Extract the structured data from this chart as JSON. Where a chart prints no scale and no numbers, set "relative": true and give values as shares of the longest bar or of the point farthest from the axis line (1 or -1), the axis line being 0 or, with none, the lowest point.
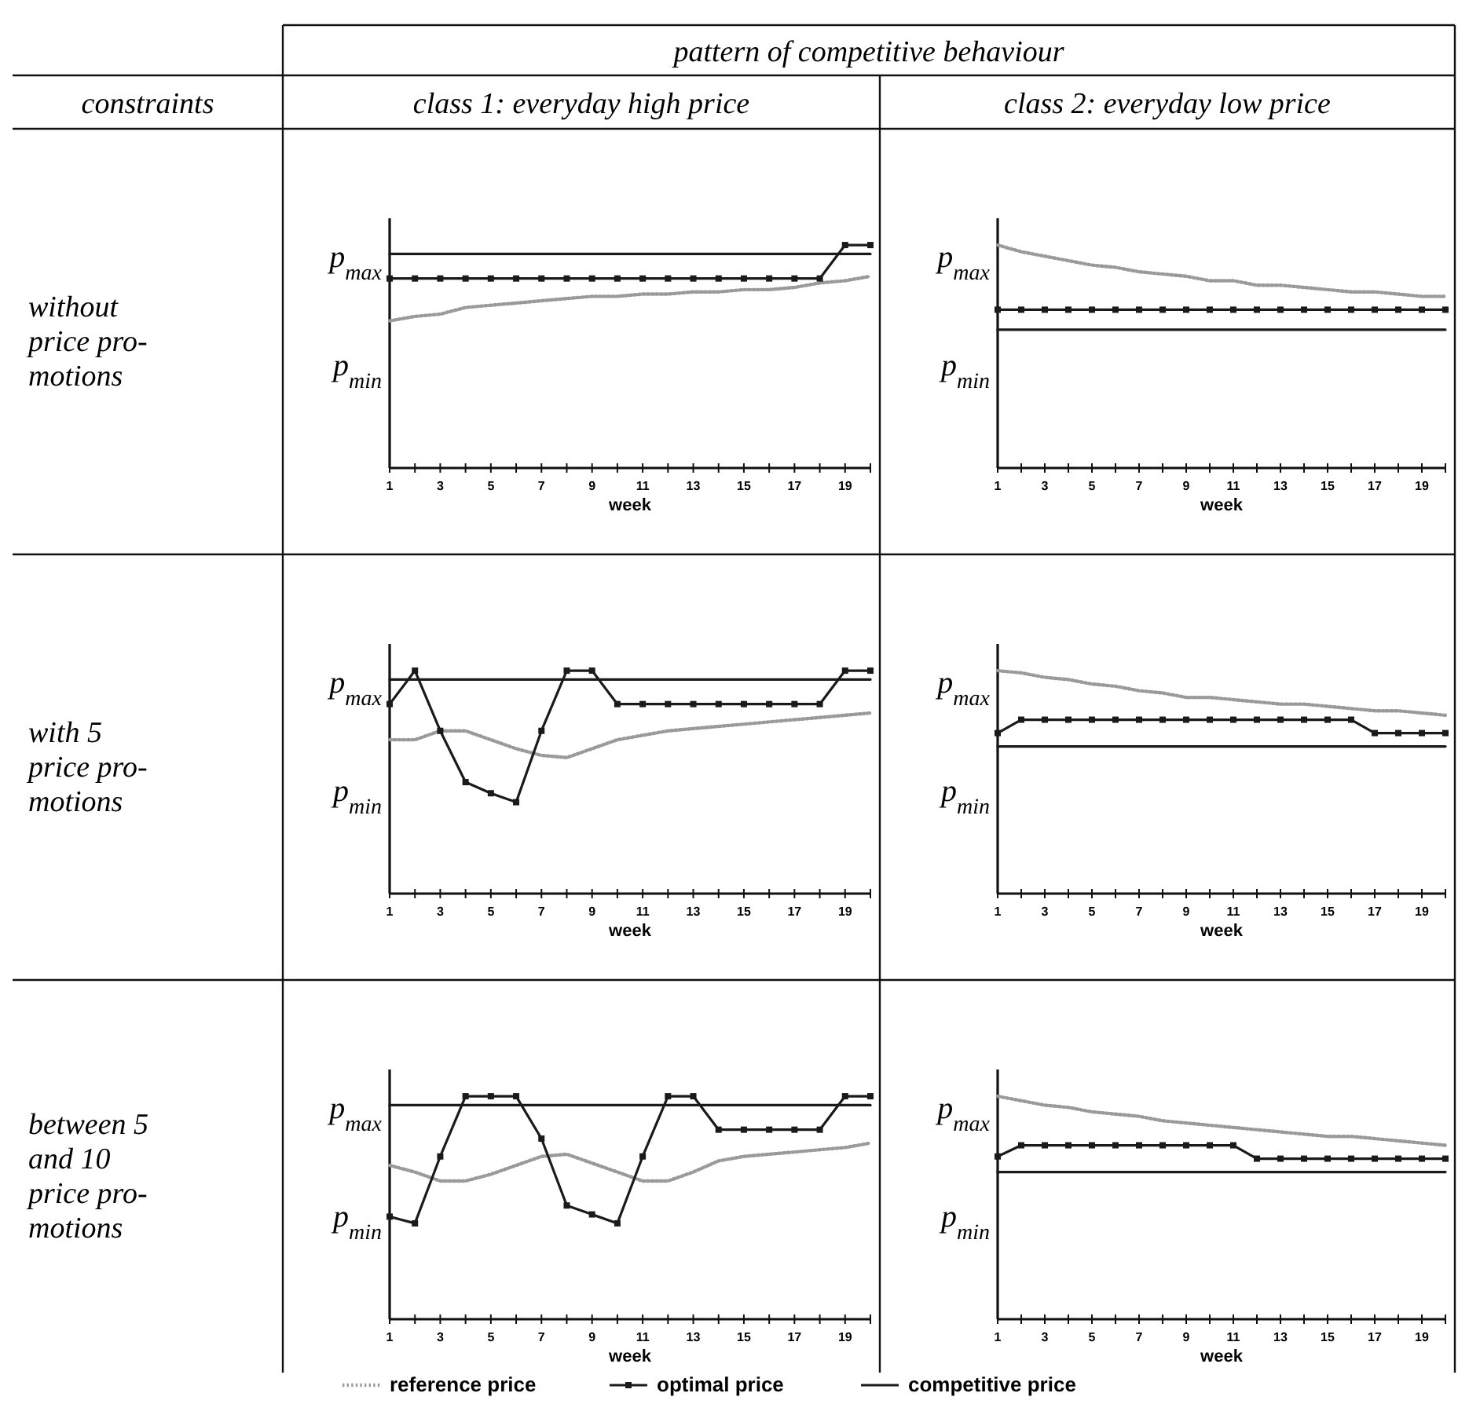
{
  "chart_data": [
    {
      "type": "other",
      "annotations": [
        "pattern of competitive behaviour",
        "constraints",
        "class 1: everyday high price",
        "class 2: everyday low price",
        "without\nprice pro-\nmotions",
        "with 5\nprice pro-\nmotions",
        "between 5\nand 10\nprice pro-\nmotions"
      ]
    },
    {
      "type": "line",
      "relative": true,
      "xlabel": "week",
      "xlim": [
        1,
        20
      ],
      "xticks": [
        1,
        {
          "value": 2,
          "label": null
        },
        3,
        {
          "value": 4,
          "label": null
        },
        5,
        {
          "value": 6,
          "label": null
        },
        7,
        {
          "value": 8,
          "label": null
        },
        9,
        {
          "value": 10,
          "label": null
        },
        11,
        {
          "value": 12,
          "label": null
        },
        13,
        {
          "value": 14,
          "label": null
        },
        15,
        {
          "value": 16,
          "label": null
        },
        17,
        {
          "value": 18,
          "label": null
        },
        19,
        {
          "value": 20,
          "label": null
        }
      ],
      "annotations": [
        "p$_{max}$",
        "p$_{min}$"
      ],
      "x": [
        1,
        2,
        3,
        4,
        5,
        6,
        7,
        8,
        9,
        10,
        11,
        12,
        13,
        14,
        15,
        16,
        17,
        18,
        19,
        20
      ],
      "series": [
        {
          "color": "#9a9a9a",
          "line_style": "dotted",
          "marker": "none",
          "values": [
            0.66,
            0.68,
            0.69,
            0.72,
            0.73,
            0.74,
            0.75,
            0.76,
            0.77,
            0.77,
            0.78,
            0.78,
            0.79,
            0.79,
            0.8,
            0.8,
            0.81,
            0.83,
            0.84,
            0.86
          ]
        },
        {
          "color": "#1a1a1a",
          "line_style": "solid",
          "marker": "square",
          "values": [
            0.85,
            0.85,
            0.85,
            0.85,
            0.85,
            0.85,
            0.85,
            0.85,
            0.85,
            0.85,
            0.85,
            0.85,
            0.85,
            0.85,
            0.85,
            0.85,
            0.85,
            0.85,
            1,
            1
          ]
        },
        {
          "color": "#1a1a1a",
          "line_style": "solid",
          "marker": "none",
          "values": [
            0.96,
            0.96,
            0.96,
            0.96,
            0.96,
            0.96,
            0.96,
            0.96,
            0.96,
            0.96,
            0.96,
            0.96,
            0.96,
            0.96,
            0.96,
            0.96,
            0.96,
            0.96,
            0.96,
            0.96
          ]
        }
      ]
    },
    {
      "type": "line",
      "relative": true,
      "xlabel": "week",
      "xlim": [
        1,
        20
      ],
      "xticks": [
        1,
        {
          "value": 2,
          "label": null
        },
        3,
        {
          "value": 4,
          "label": null
        },
        5,
        {
          "value": 6,
          "label": null
        },
        7,
        {
          "value": 8,
          "label": null
        },
        9,
        {
          "value": 10,
          "label": null
        },
        11,
        {
          "value": 12,
          "label": null
        },
        13,
        {
          "value": 14,
          "label": null
        },
        15,
        {
          "value": 16,
          "label": null
        },
        17,
        {
          "value": 18,
          "label": null
        },
        19,
        {
          "value": 20,
          "label": null
        }
      ],
      "annotations": [
        "p$_{max}$",
        "p$_{min}$"
      ],
      "x": [
        1,
        2,
        3,
        4,
        5,
        6,
        7,
        8,
        9,
        10,
        11,
        12,
        13,
        14,
        15,
        16,
        17,
        18,
        19,
        20
      ],
      "series": [
        {
          "color": "#9a9a9a",
          "line_style": "dotted",
          "marker": "none",
          "values": [
            1,
            0.97,
            0.95,
            0.93,
            0.91,
            0.9,
            0.88,
            0.87,
            0.86,
            0.84,
            0.84,
            0.82,
            0.82,
            0.81,
            0.8,
            0.79,
            0.79,
            0.78,
            0.77,
            0.77
          ]
        },
        {
          "color": "#1a1a1a",
          "line_style": "solid",
          "marker": "square",
          "values": [
            0.71,
            0.71,
            0.71,
            0.71,
            0.71,
            0.71,
            0.71,
            0.71,
            0.71,
            0.71,
            0.71,
            0.71,
            0.71,
            0.71,
            0.71,
            0.71,
            0.71,
            0.71,
            0.71,
            0.71
          ]
        },
        {
          "color": "#1a1a1a",
          "line_style": "solid",
          "marker": "none",
          "values": [
            0.62,
            0.62,
            0.62,
            0.62,
            0.62,
            0.62,
            0.62,
            0.62,
            0.62,
            0.62,
            0.62,
            0.62,
            0.62,
            0.62,
            0.62,
            0.62,
            0.62,
            0.62,
            0.62,
            0.62
          ]
        }
      ]
    },
    {
      "type": "line",
      "relative": true,
      "xlabel": "week",
      "xlim": [
        1,
        20
      ],
      "xticks": [
        1,
        {
          "value": 2,
          "label": null
        },
        3,
        {
          "value": 4,
          "label": null
        },
        5,
        {
          "value": 6,
          "label": null
        },
        7,
        {
          "value": 8,
          "label": null
        },
        9,
        {
          "value": 10,
          "label": null
        },
        11,
        {
          "value": 12,
          "label": null
        },
        13,
        {
          "value": 14,
          "label": null
        },
        15,
        {
          "value": 16,
          "label": null
        },
        17,
        {
          "value": 18,
          "label": null
        },
        19,
        {
          "value": 20,
          "label": null
        }
      ],
      "annotations": [
        "p$_{max}$",
        "p$_{min}$"
      ],
      "x": [
        1,
        2,
        3,
        4,
        5,
        6,
        7,
        8,
        9,
        10,
        11,
        12,
        13,
        14,
        15,
        16,
        17,
        18,
        19,
        20
      ],
      "series": [
        {
          "color": "#9a9a9a",
          "line_style": "dotted",
          "marker": "none",
          "values": [
            0.69,
            0.69,
            0.73,
            0.73,
            0.69,
            0.65,
            0.62,
            0.61,
            0.65,
            0.69,
            0.71,
            0.73,
            0.74,
            0.75,
            0.76,
            0.77,
            0.78,
            0.79,
            0.8,
            0.81
          ]
        },
        {
          "color": "#1a1a1a",
          "line_style": "solid",
          "marker": "square",
          "values": [
            0.85,
            1,
            0.73,
            0.5,
            0.45,
            0.41,
            0.73,
            1,
            1,
            0.85,
            0.85,
            0.85,
            0.85,
            0.85,
            0.85,
            0.85,
            0.85,
            0.85,
            1,
            1
          ]
        },
        {
          "color": "#1a1a1a",
          "line_style": "solid",
          "marker": "none",
          "values": [
            0.96,
            0.96,
            0.96,
            0.96,
            0.96,
            0.96,
            0.96,
            0.96,
            0.96,
            0.96,
            0.96,
            0.96,
            0.96,
            0.96,
            0.96,
            0.96,
            0.96,
            0.96,
            0.96,
            0.96
          ]
        }
      ]
    },
    {
      "type": "line",
      "relative": true,
      "xlabel": "week",
      "xlim": [
        1,
        20
      ],
      "xticks": [
        1,
        {
          "value": 2,
          "label": null
        },
        3,
        {
          "value": 4,
          "label": null
        },
        5,
        {
          "value": 6,
          "label": null
        },
        7,
        {
          "value": 8,
          "label": null
        },
        9,
        {
          "value": 10,
          "label": null
        },
        11,
        {
          "value": 12,
          "label": null
        },
        13,
        {
          "value": 14,
          "label": null
        },
        15,
        {
          "value": 16,
          "label": null
        },
        17,
        {
          "value": 18,
          "label": null
        },
        19,
        {
          "value": 20,
          "label": null
        }
      ],
      "annotations": [
        "p$_{max}$",
        "p$_{min}$"
      ],
      "x": [
        1,
        2,
        3,
        4,
        5,
        6,
        7,
        8,
        9,
        10,
        11,
        12,
        13,
        14,
        15,
        16,
        17,
        18,
        19,
        20
      ],
      "series": [
        {
          "color": "#9a9a9a",
          "line_style": "dotted",
          "marker": "none",
          "values": [
            1,
            0.99,
            0.97,
            0.96,
            0.94,
            0.93,
            0.91,
            0.9,
            0.88,
            0.88,
            0.87,
            0.86,
            0.85,
            0.85,
            0.84,
            0.83,
            0.82,
            0.82,
            0.81,
            0.8
          ]
        },
        {
          "color": "#1a1a1a",
          "line_style": "solid",
          "marker": "square",
          "values": [
            0.72,
            0.78,
            0.78,
            0.78,
            0.78,
            0.78,
            0.78,
            0.78,
            0.78,
            0.78,
            0.78,
            0.78,
            0.78,
            0.78,
            0.78,
            0.78,
            0.72,
            0.72,
            0.72,
            0.72
          ]
        },
        {
          "color": "#1a1a1a",
          "line_style": "solid",
          "marker": "none",
          "values": [
            0.66,
            0.66,
            0.66,
            0.66,
            0.66,
            0.66,
            0.66,
            0.66,
            0.66,
            0.66,
            0.66,
            0.66,
            0.66,
            0.66,
            0.66,
            0.66,
            0.66,
            0.66,
            0.66,
            0.66
          ]
        }
      ]
    },
    {
      "type": "line",
      "relative": true,
      "xlabel": "week",
      "xlim": [
        1,
        20
      ],
      "xticks": [
        1,
        {
          "value": 2,
          "label": null
        },
        3,
        {
          "value": 4,
          "label": null
        },
        5,
        {
          "value": 6,
          "label": null
        },
        7,
        {
          "value": 8,
          "label": null
        },
        9,
        {
          "value": 10,
          "label": null
        },
        11,
        {
          "value": 12,
          "label": null
        },
        13,
        {
          "value": 14,
          "label": null
        },
        15,
        {
          "value": 16,
          "label": null
        },
        17,
        {
          "value": 18,
          "label": null
        },
        19,
        {
          "value": 20,
          "label": null
        }
      ],
      "annotations": [
        "p$_{max}$",
        "p$_{min}$"
      ],
      "x": [
        1,
        2,
        3,
        4,
        5,
        6,
        7,
        8,
        9,
        10,
        11,
        12,
        13,
        14,
        15,
        16,
        17,
        18,
        19,
        20
      ],
      "series": [
        {
          "color": "#9a9a9a",
          "line_style": "dotted",
          "marker": "none",
          "values": [
            0.69,
            0.66,
            0.62,
            0.62,
            0.65,
            0.69,
            0.73,
            0.74,
            0.7,
            0.66,
            0.62,
            0.62,
            0.66,
            0.71,
            0.73,
            0.74,
            0.75,
            0.76,
            0.77,
            0.79
          ]
        },
        {
          "color": "#1a1a1a",
          "line_style": "solid",
          "marker": "square",
          "values": [
            0.46,
            0.43,
            0.73,
            1,
            1,
            1,
            0.81,
            0.51,
            0.47,
            0.43,
            0.73,
            1,
            1,
            0.85,
            0.85,
            0.85,
            0.85,
            0.85,
            1,
            1
          ]
        },
        {
          "color": "#1a1a1a",
          "line_style": "solid",
          "marker": "none",
          "values": [
            0.96,
            0.96,
            0.96,
            0.96,
            0.96,
            0.96,
            0.96,
            0.96,
            0.96,
            0.96,
            0.96,
            0.96,
            0.96,
            0.96,
            0.96,
            0.96,
            0.96,
            0.96,
            0.96,
            0.96
          ]
        }
      ]
    },
    {
      "type": "line",
      "relative": true,
      "xlabel": "week",
      "xlim": [
        1,
        20
      ],
      "legend": "bottom",
      "xticks": [
        1,
        {
          "value": 2,
          "label": null
        },
        3,
        {
          "value": 4,
          "label": null
        },
        5,
        {
          "value": 6,
          "label": null
        },
        7,
        {
          "value": 8,
          "label": null
        },
        9,
        {
          "value": 10,
          "label": null
        },
        11,
        {
          "value": 12,
          "label": null
        },
        13,
        {
          "value": 14,
          "label": null
        },
        15,
        {
          "value": 16,
          "label": null
        },
        17,
        {
          "value": 18,
          "label": null
        },
        19,
        {
          "value": 20,
          "label": null
        }
      ],
      "annotations": [
        "p$_{max}$",
        "p$_{min}$"
      ],
      "x": [
        1,
        2,
        3,
        4,
        5,
        6,
        7,
        8,
        9,
        10,
        11,
        12,
        13,
        14,
        15,
        16,
        17,
        18,
        19,
        20
      ],
      "series": [
        {
          "name": "reference price",
          "color": "#9a9a9a",
          "line_style": "dotted",
          "marker": "none",
          "values": [
            1,
            0.98,
            0.96,
            0.95,
            0.93,
            0.92,
            0.91,
            0.89,
            0.88,
            0.87,
            0.86,
            0.85,
            0.84,
            0.83,
            0.82,
            0.82,
            0.81,
            0.8,
            0.79,
            0.78
          ]
        },
        {
          "name": "optimal price",
          "color": "#1a1a1a",
          "line_style": "solid",
          "marker": "square",
          "values": [
            0.73,
            0.78,
            0.78,
            0.78,
            0.78,
            0.78,
            0.78,
            0.78,
            0.78,
            0.78,
            0.78,
            0.72,
            0.72,
            0.72,
            0.72,
            0.72,
            0.72,
            0.72,
            0.72,
            0.72
          ]
        },
        {
          "name": "competitive price",
          "color": "#1a1a1a",
          "line_style": "solid",
          "marker": "none",
          "values": [
            0.66,
            0.66,
            0.66,
            0.66,
            0.66,
            0.66,
            0.66,
            0.66,
            0.66,
            0.66,
            0.66,
            0.66,
            0.66,
            0.66,
            0.66,
            0.66,
            0.66,
            0.66,
            0.66,
            0.66
          ]
        }
      ]
    }
  ]
}
